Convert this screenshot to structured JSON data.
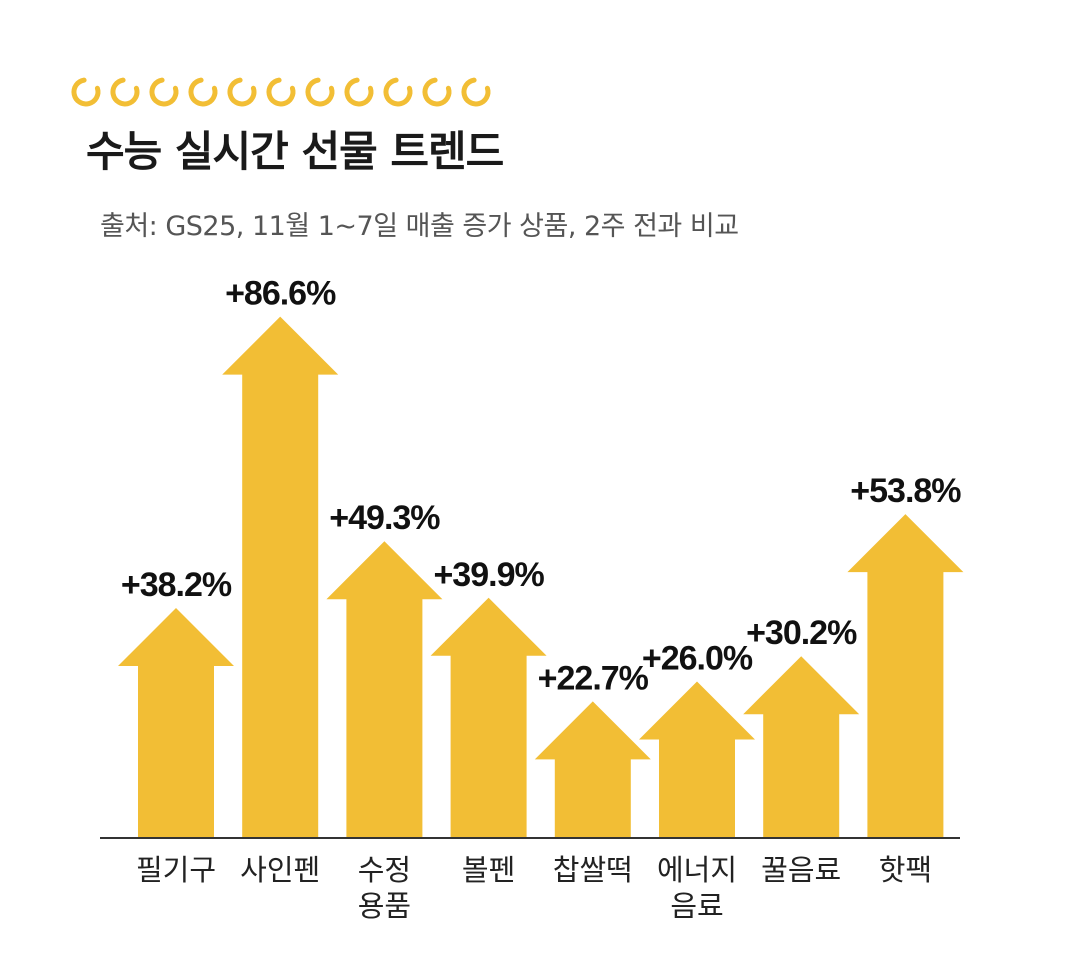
{
  "header": {
    "title": "수능 실시간 선물 트렌드",
    "subtitle": "출처: GS25, 11월 1~7일 매출 증가 상품, 2주 전과 비교"
  },
  "colors": {
    "bar": "#F2BE35",
    "decoration": "#F2BE35",
    "baseline": "#333333"
  },
  "chart_data": {
    "type": "bar",
    "title": "수능 실시간 선물 트렌드",
    "subtitle": "출처: GS25, 11월 1~7일 매출 증가 상품, 2주 전과 비교",
    "categories": [
      [
        "필기구"
      ],
      [
        "사인펜"
      ],
      [
        "수정",
        "용품"
      ],
      [
        "볼펜"
      ],
      [
        "찹쌀떡"
      ],
      [
        "에너지",
        "음료"
      ],
      [
        "꿀음료"
      ],
      [
        "핫팩"
      ]
    ],
    "values": [
      38.2,
      86.6,
      49.3,
      39.9,
      22.7,
      26.0,
      30.2,
      53.8
    ],
    "value_labels": [
      "+38.2%",
      "+86.6%",
      "+49.3%",
      "+39.9%",
      "+22.7%",
      "+26.0%",
      "+30.2%",
      "+53.8%"
    ],
    "xlabel": "",
    "ylabel": "",
    "ylim": [
      0,
      100
    ],
    "grid": false,
    "legend": "none",
    "mark_shape": "arrow"
  }
}
